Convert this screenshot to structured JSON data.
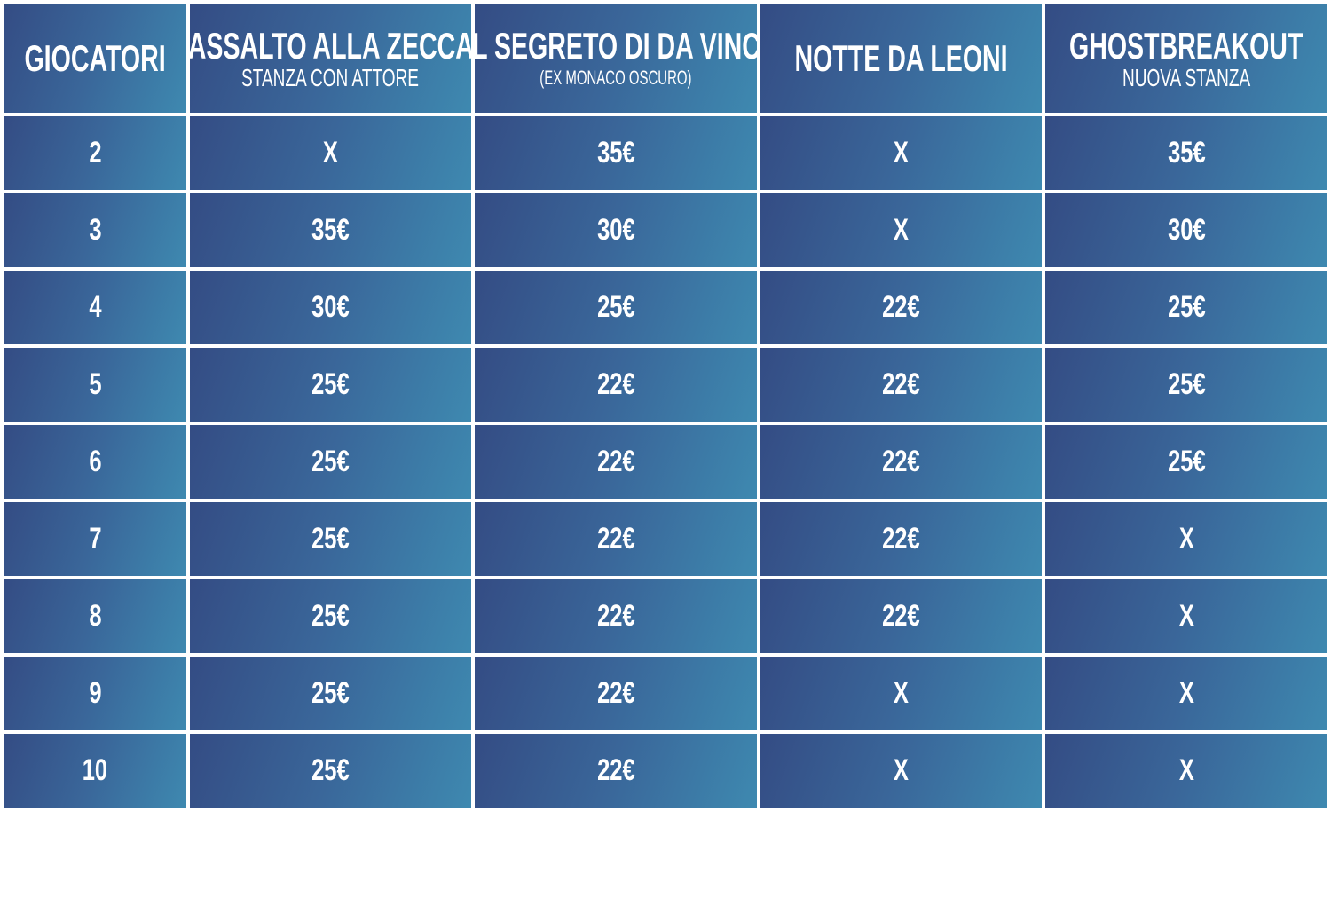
{
  "table": {
    "header": [
      {
        "title": "GIOCATORI"
      },
      {
        "title": "ASSALTO ALLA ZECCA",
        "subtitle": "STANZA CON ATTORE"
      },
      {
        "title": "IL SEGRETO DI DA VINCI",
        "subtitle": "(EX MONACO OSCURO)"
      },
      {
        "title": "NOTTE DA LEONI"
      },
      {
        "title": "GHOSTBREAKOUT",
        "subtitle": "NUOVA STANZA"
      }
    ],
    "rows": [
      [
        "2",
        "X",
        "35€",
        "X",
        "35€"
      ],
      [
        "3",
        "35€",
        "30€",
        "X",
        "30€"
      ],
      [
        "4",
        "30€",
        "25€",
        "22€",
        "25€"
      ],
      [
        "5",
        "25€",
        "22€",
        "22€",
        "25€"
      ],
      [
        "6",
        "25€",
        "22€",
        "22€",
        "25€"
      ],
      [
        "7",
        "25€",
        "22€",
        "22€",
        "X"
      ],
      [
        "8",
        "25€",
        "22€",
        "22€",
        "X"
      ],
      [
        "9",
        "25€",
        "22€",
        "X",
        "X"
      ],
      [
        "10",
        "25€",
        "22€",
        "X",
        "X"
      ]
    ]
  }
}
